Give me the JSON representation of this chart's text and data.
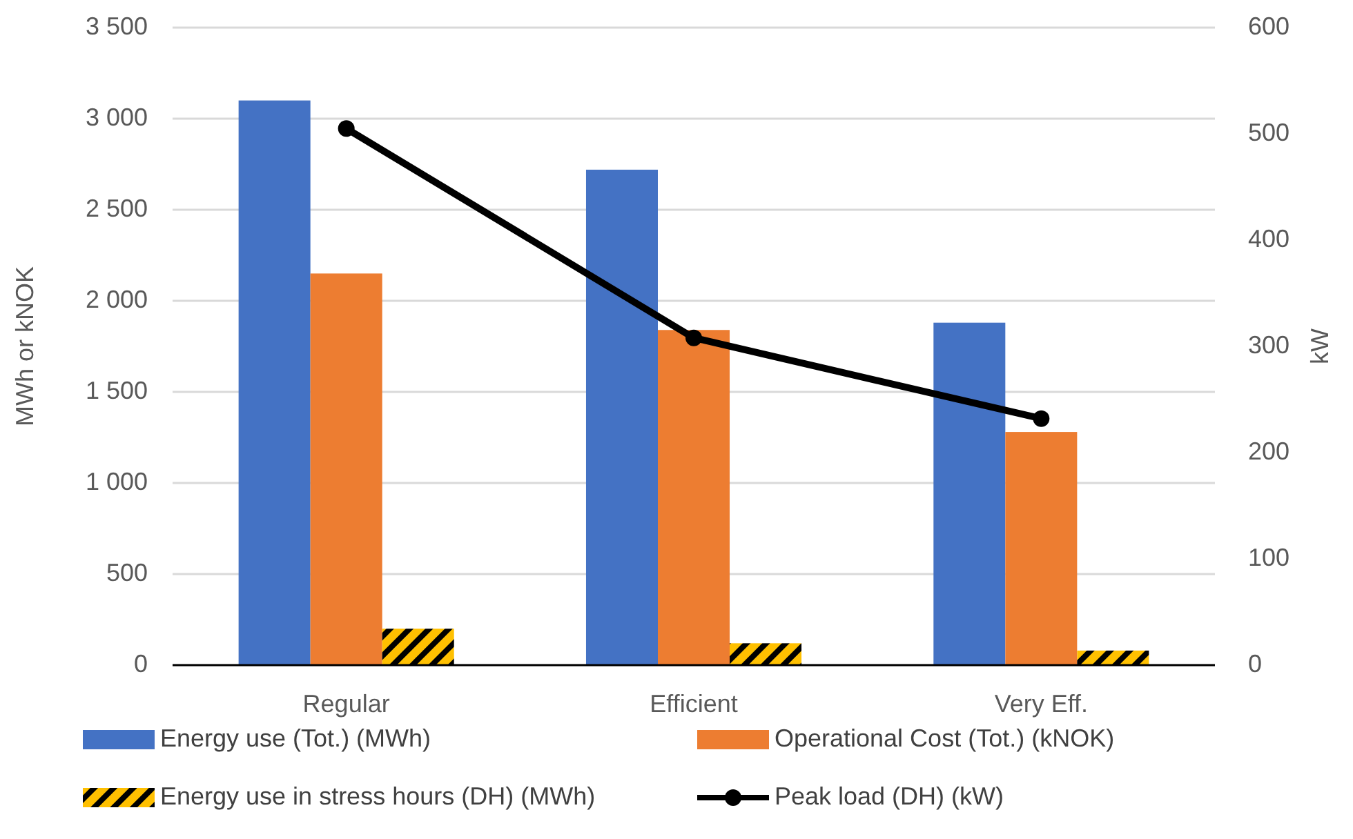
{
  "chart_data": {
    "type": "bar",
    "categories": [
      "Regular",
      "Efficient",
      "Very Eff."
    ],
    "ylabel": "MWh or kNOK",
    "y2label": "kW",
    "ylim": [
      0,
      3500
    ],
    "yticks": [
      {
        "value": 0,
        "label": "0"
      },
      {
        "value": 500,
        "label": "500"
      },
      {
        "value": 1000,
        "label": "1 000"
      },
      {
        "value": 1500,
        "label": "1 500"
      },
      {
        "value": 2000,
        "label": "2 000"
      },
      {
        "value": 2500,
        "label": "2 500"
      },
      {
        "value": 3000,
        "label": "3 000"
      },
      {
        "value": 3500,
        "label": "3 500"
      }
    ],
    "y2lim": [
      0,
      600
    ],
    "y2ticks": [
      0,
      100,
      200,
      300,
      400,
      500,
      600
    ],
    "grid": "y",
    "legend": "bottom",
    "series": [
      {
        "name": "Energy use (Tot.) (MWh)",
        "color": "#4472c4",
        "values": [
          3100,
          2720,
          1880
        ]
      },
      {
        "name": "Operational Cost (Tot.) (kNOK)",
        "color": "#ed7d31",
        "values": [
          2150,
          1840,
          1280
        ]
      },
      {
        "name": "Energy use in stress hours (DH) (MWh)",
        "color": "#ffc000",
        "values": [
          200,
          120,
          80
        ]
      },
      {
        "name": "Peak load (DH) (kW)",
        "type": "line",
        "axis": "y2",
        "color": "#000000",
        "marker": "circle",
        "values": [
          505,
          308,
          232
        ]
      }
    ]
  }
}
